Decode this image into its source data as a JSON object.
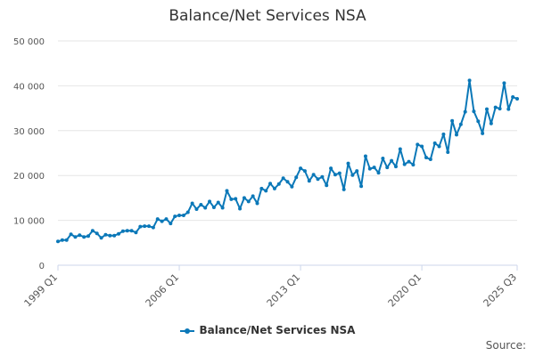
{
  "chart_data": {
    "type": "line",
    "title": "Balance/Net Services NSA",
    "series": [
      {
        "name": "Balance/Net Services NSA",
        "color": "#0b78b8",
        "values": [
          5300,
          5600,
          5600,
          6900,
          6300,
          6700,
          6300,
          6500,
          7700,
          7100,
          6100,
          6800,
          6600,
          6600,
          7000,
          7600,
          7700,
          7700,
          7300,
          8600,
          8700,
          8700,
          8400,
          10300,
          9800,
          10300,
          9300,
          10900,
          11100,
          11100,
          11800,
          13800,
          12500,
          13500,
          12800,
          14200,
          12900,
          14000,
          12800,
          16600,
          14700,
          14800,
          12600,
          15000,
          14200,
          15400,
          13800,
          17100,
          16600,
          18200,
          17100,
          18100,
          19400,
          18600,
          17500,
          19600,
          21600,
          21000,
          18800,
          20200,
          19200,
          19700,
          17800,
          21600,
          20200,
          20500,
          16900,
          22700,
          20100,
          21000,
          17600,
          24300,
          21500,
          21800,
          20600,
          23800,
          21800,
          23300,
          22000,
          25900,
          22500,
          23100,
          22400,
          26900,
          26500,
          24000,
          23600,
          27200,
          26500,
          29200,
          25200,
          32200,
          29100,
          31400,
          34200,
          41200,
          34300,
          32100,
          29400,
          34800,
          31600,
          35200,
          34900,
          40600,
          34800,
          37500,
          37100
        ]
      }
    ],
    "x_start": "1999 Q1",
    "x_end": "2025 Q3",
    "x_ticks": [
      "1999 Q1",
      "2006 Q1",
      "2013 Q1",
      "2020 Q1",
      "2025 Q3"
    ],
    "y_ticks": [
      "0",
      "10 000",
      "20 000",
      "30 000",
      "40 000",
      "50 000"
    ],
    "ylim": [
      0,
      50000
    ],
    "grid": true,
    "legend": "bottom-center"
  },
  "source_label": "Source:"
}
